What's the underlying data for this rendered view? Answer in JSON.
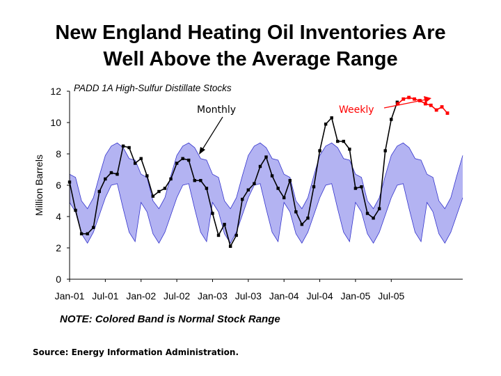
{
  "title_line1": "New England Heating Oil Inventories Are",
  "title_line2": "Well Above the Average Range",
  "note": "NOTE: Colored Band is Normal Stock Range",
  "source": "Source: Energy Information Administration.",
  "colors": {
    "band": "#b3b3f2",
    "band_edge": "#3333cc",
    "monthly": "#000000",
    "weekly": "#ff0000",
    "text": "#000000"
  },
  "chart_data": {
    "type": "line",
    "title": "PADD 1A High-Sulfur Distillate Stocks",
    "ylabel": "Million Barrels",
    "ylim": [
      0,
      12
    ],
    "yticks": [
      "0",
      "2",
      "4",
      "6",
      "8",
      "10",
      "12"
    ],
    "xticks": [
      "Jan-01",
      "Jul-01",
      "Jan-02",
      "Jul-02",
      "Jan-03",
      "Jul-03",
      "Jan-04",
      "Jul-04",
      "Jan-05",
      "Jul-05"
    ],
    "annotations": [
      {
        "text": "Monthly",
        "color": "#000000"
      },
      {
        "text": "Weekly",
        "color": "#ff0000"
      }
    ],
    "band": {
      "name": "Normal Stock Range",
      "months": [
        "Jan",
        "Feb",
        "Mar",
        "Apr",
        "May",
        "Jun",
        "Jul",
        "Aug",
        "Sep",
        "Oct",
        "Nov",
        "Dec"
      ],
      "upper": [
        6.7,
        6.5,
        5.0,
        4.5,
        5.2,
        6.6,
        7.9,
        8.5,
        8.7,
        8.4,
        7.7,
        7.6
      ],
      "lower": [
        4.9,
        4.3,
        2.9,
        2.3,
        3.0,
        4.1,
        5.2,
        6.0,
        6.1,
        4.5,
        3.0,
        2.4
      ]
    },
    "series": [
      {
        "name": "Monthly",
        "start": "Jan-01",
        "values": [
          6.2,
          4.4,
          2.9,
          2.9,
          3.3,
          5.6,
          6.4,
          6.8,
          6.7,
          8.5,
          8.4,
          7.4,
          7.7,
          6.6,
          5.3,
          5.6,
          5.8,
          6.4,
          7.4,
          7.7,
          7.6,
          6.3,
          6.3,
          5.8,
          4.2,
          2.8,
          3.5,
          2.1,
          2.8,
          5.1,
          5.7,
          6.1,
          7.2,
          7.8,
          6.6,
          5.8,
          5.2,
          6.3,
          4.3,
          3.5,
          3.9,
          5.9,
          8.2,
          9.9,
          10.3,
          8.8,
          8.8,
          8.3,
          5.8,
          5.9,
          4.2,
          3.9,
          4.5,
          8.2,
          10.2,
          11.3
        ]
      },
      {
        "name": "Weekly",
        "values": [
          11.2,
          11.5,
          11.6,
          11.5,
          11.4,
          11.2,
          11.1,
          10.8,
          11.0,
          10.6
        ]
      }
    ]
  }
}
